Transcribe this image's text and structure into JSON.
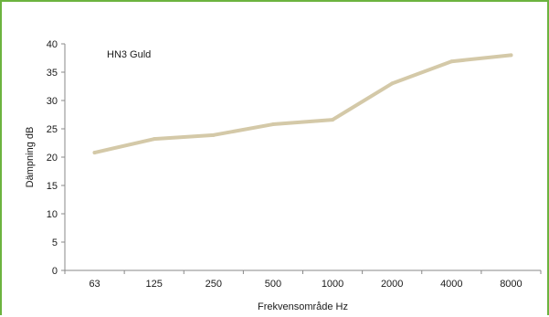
{
  "chart_data": {
    "type": "line",
    "categories": [
      "63",
      "125",
      "250",
      "500",
      "1000",
      "2000",
      "4000",
      "8000"
    ],
    "series": [
      {
        "name": "HN3 Guld",
        "values": [
          20.8,
          23.2,
          23.9,
          25.8,
          26.6,
          33.0,
          36.9,
          38.0
        ],
        "color": "#d4c9a8"
      }
    ],
    "xlabel": "Frekvensområde Hz",
    "ylabel": "Dämpning dB",
    "ylim": [
      0,
      40
    ],
    "yticks": [
      0,
      5,
      10,
      15,
      20,
      25,
      30,
      35,
      40
    ],
    "grid": false,
    "legend": "top-left",
    "frame_color": "#6cb33f",
    "axis_color": "#888888"
  }
}
